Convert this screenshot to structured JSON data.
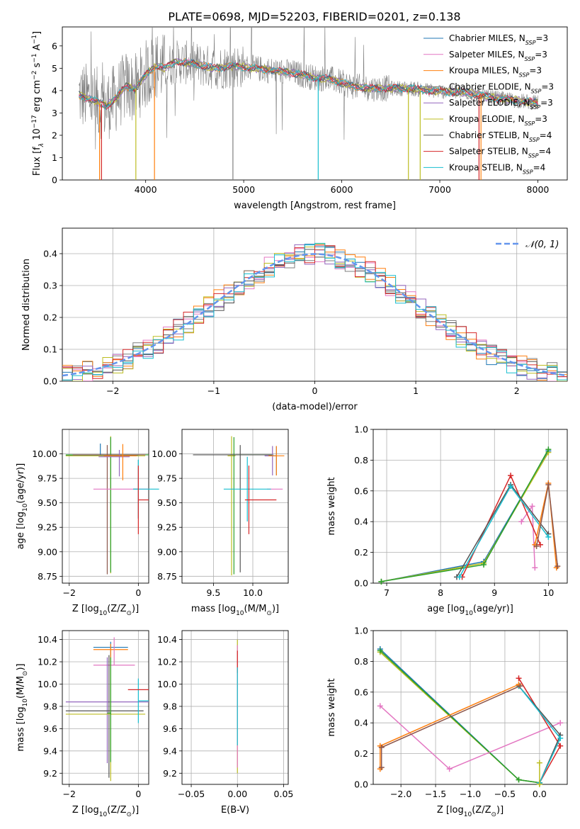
{
  "figure": {
    "title": "PLATE=0698, MJD=52203, FIBERID=0201, z=0.138"
  },
  "colors": {
    "gray": "#7f7f7f",
    "blue": "#1f77b4",
    "pink": "#e377c2",
    "orange": "#ff7f0e",
    "purple": "#9467bd",
    "olive": "#bcbd22",
    "darkgray": "#555555",
    "red": "#d62728",
    "cyan": "#17becf",
    "steelblue": "#6495ed"
  },
  "chart_data": [
    {
      "type": "line",
      "id": "spectrum",
      "xlabel": "wavelength [Angstrom, rest frame]",
      "ylabel": "Flux [f_λ 10^-17 erg cm^-2 s^-1 A^-1]",
      "xlim": [
        3150,
        8300
      ],
      "ylim": [
        0,
        6.85
      ],
      "xticks": [
        4000,
        5000,
        6000,
        7000,
        8000
      ],
      "yticks": [
        0,
        1,
        2,
        3,
        4,
        5,
        6
      ],
      "grid": false,
      "legend_position": "top-right",
      "legend": [
        {
          "label": "Chabrier MILES, N_SSP=3",
          "color": "#1f77b4"
        },
        {
          "label": "Salpeter MILES, N_SSP=3",
          "color": "#e377c2"
        },
        {
          "label": "Kroupa MILES, N_SSP=3",
          "color": "#ff7f0e"
        },
        {
          "label": "Chabrier ELODIE, N_SSP=3",
          "color": "#7f7f7f"
        },
        {
          "label": "Salpeter ELODIE, N_SSP=3",
          "color": "#9467bd"
        },
        {
          "label": "Kroupa ELODIE, N_SSP=3",
          "color": "#bcbd22"
        },
        {
          "label": "Chabrier STELIB, N_SSP=4",
          "color": "#555555"
        },
        {
          "label": "Salpeter STELIB, N_SSP=4",
          "color": "#d62728"
        },
        {
          "label": "Kroupa STELIB, N_SSP=4",
          "color": "#17becf"
        }
      ],
      "continuum": {
        "x": [
          3320,
          3450,
          3600,
          3700,
          3800,
          3900,
          4000,
          4100,
          4200,
          4300,
          4500,
          4700,
          4900,
          5100,
          5300,
          5500,
          5700,
          5900,
          6100,
          6300,
          6500,
          6700,
          6900,
          7100,
          7300,
          7500,
          7700,
          7900,
          8000
        ],
        "y": [
          3.8,
          3.6,
          3.3,
          3.7,
          4.2,
          4.1,
          4.7,
          5.1,
          5.0,
          5.3,
          5.2,
          5.0,
          5.1,
          5.0,
          4.9,
          4.8,
          4.6,
          4.5,
          4.2,
          4.1,
          4.1,
          4.1,
          4.0,
          3.95,
          3.9,
          3.7,
          3.6,
          3.5,
          3.45
        ]
      }
    },
    {
      "type": "histogram",
      "id": "residuals",
      "xlabel": "(data-model)/error",
      "ylabel": "Normed distribution",
      "xlim": [
        -2.5,
        2.5
      ],
      "ylim": [
        0,
        0.48
      ],
      "xticks": [
        -2,
        -1,
        0,
        1,
        2
      ],
      "yticks": [
        0.0,
        0.1,
        0.2,
        0.3,
        0.4
      ],
      "grid": true,
      "legend_position": "top-right",
      "reference_curve": {
        "label": "𝒩(0, 1)",
        "mean": 0,
        "sigma": 1
      },
      "bin_width": 0.1,
      "bin_start": -2.5
    },
    {
      "type": "scatter",
      "id": "age-vs-z",
      "xlabel": "Z [log10(Z/Z_sun)]",
      "ylabel": "age  [log10(age/yr)]",
      "xlim": [
        -2.2,
        0.3
      ],
      "ylim": [
        8.68,
        10.25
      ],
      "xticks": [
        -2,
        0
      ],
      "yticks": [
        8.75,
        9.0,
        9.25,
        9.5,
        9.75,
        10.0
      ],
      "grid": true,
      "errorbars": [
        {
          "x": -1.1,
          "xerr": [
            1.0,
            1.1
          ],
          "y": 9.985,
          "yerr": [
            0.0,
            0.12
          ],
          "color": "#1f77b4"
        },
        {
          "x": -0.8,
          "xerr": [
            1.3,
            1.0
          ],
          "y": 9.98,
          "yerr": [
            1.2,
            0.2
          ],
          "color": "#bcbd22"
        },
        {
          "x": -0.8,
          "xerr": [
            1.3,
            1.1
          ],
          "y": 9.99,
          "yerr": [
            1.2,
            0.18
          ],
          "color": "#2ca02c"
        },
        {
          "x": -0.9,
          "xerr": [
            1.0,
            1.1
          ],
          "y": 9.99,
          "yerr": [
            1.22,
            0.1
          ],
          "color": "#8c564b"
        },
        {
          "x": -0.55,
          "xerr": [
            0.6,
            0.3
          ],
          "y": 9.97,
          "yerr": [
            0.2,
            0.07
          ],
          "color": "#9467bd"
        },
        {
          "x": -0.45,
          "xerr": [
            0.55,
            0.4
          ],
          "y": 9.98,
          "yerr": [
            0.25,
            0.12
          ],
          "color": "#ff7f0e"
        },
        {
          "x": -0.6,
          "xerr": [
            0.7,
            0.9
          ],
          "y": 9.64,
          "yerr": [
            0.0,
            0.0
          ],
          "color": "#e377c2"
        },
        {
          "x": 0.0,
          "xerr": [
            0.15,
            0.0
          ],
          "y": 9.64,
          "yerr": [
            0.3,
            0.3
          ],
          "color": "#7f7f7f"
        },
        {
          "x": 0.0,
          "xerr": [
            0.15,
            0.6
          ],
          "y": 9.64,
          "yerr": [
            0.3,
            0.3
          ],
          "color": "#17becf"
        },
        {
          "x": 0.0,
          "xerr": [
            0.0,
            0.3
          ],
          "y": 9.53,
          "yerr": [
            0.35,
            0.35
          ],
          "color": "#d62728"
        }
      ]
    },
    {
      "type": "scatter",
      "id": "age-vs-mass",
      "xlabel": "mass [log10(M/M_sun)]",
      "ylabel": "",
      "xlim": [
        9.1,
        10.45
      ],
      "ylim": [
        8.68,
        10.25
      ],
      "xticks": [
        9.5,
        10.0
      ],
      "yticks": [
        8.75,
        9.0,
        9.25,
        9.5,
        9.75,
        10.0
      ],
      "grid": true,
      "errorbars": [
        {
          "x": 9.73,
          "xerr": [
            0.05,
            0.05
          ],
          "y": 9.98,
          "yerr": [
            1.22,
            0.2
          ],
          "color": "#bcbd22"
        },
        {
          "x": 9.76,
          "xerr": [
            0.05,
            0.5
          ],
          "y": 9.99,
          "yerr": [
            1.22,
            0.18
          ],
          "color": "#2ca02c"
        },
        {
          "x": 9.84,
          "xerr": [
            0.6,
            0.4
          ],
          "y": 9.99,
          "yerr": [
            1.2,
            0.1
          ],
          "color": "#555555"
        },
        {
          "x": 10.3,
          "xerr": [
            0.1,
            0.0
          ],
          "y": 9.98,
          "yerr": [
            0.2,
            0.1
          ],
          "color": "#1f77b4"
        },
        {
          "x": 10.25,
          "xerr": [
            0.1,
            0.0
          ],
          "y": 9.98,
          "yerr": [
            0.2,
            0.1
          ],
          "color": "#9467bd"
        },
        {
          "x": 10.3,
          "xerr": [
            0.1,
            0.1
          ],
          "y": 9.98,
          "yerr": [
            0.2,
            0.1
          ],
          "color": "#ff7f0e"
        },
        {
          "x": 10.18,
          "xerr": [
            0.0,
            0.2
          ],
          "y": 9.64,
          "yerr": [
            0.0,
            0.0
          ],
          "color": "#e377c2"
        },
        {
          "x": 9.93,
          "xerr": [
            0.3,
            0.3
          ],
          "y": 9.64,
          "yerr": [
            0.33,
            0.33
          ],
          "color": "#17becf"
        },
        {
          "x": 9.95,
          "xerr": [
            0.05,
            0.35
          ],
          "y": 9.53,
          "yerr": [
            0.35,
            0.35
          ],
          "color": "#d62728"
        }
      ]
    },
    {
      "type": "line",
      "id": "massweight-vs-age",
      "xlabel": "age  [log10(age/yr)]",
      "ylabel": "mass weight",
      "xlim": [
        6.75,
        10.35
      ],
      "ylim": [
        0.0,
        1.0
      ],
      "xticks": [
        7,
        8,
        9,
        10
      ],
      "yticks": [
        0.0,
        0.2,
        0.4,
        0.6,
        0.8,
        1.0
      ],
      "grid": true,
      "series": [
        {
          "color": "#1f77b4",
          "x": [
            6.9,
            8.8,
            10.0
          ],
          "y": [
            0.01,
            0.14,
            0.86
          ]
        },
        {
          "color": "#bcbd22",
          "x": [
            6.9,
            8.8,
            10.0
          ],
          "y": [
            0.01,
            0.13,
            0.85
          ]
        },
        {
          "color": "#2ca02c",
          "x": [
            6.9,
            8.8,
            10.0
          ],
          "y": [
            0.01,
            0.12,
            0.87
          ]
        },
        {
          "color": "#e377c2",
          "x": [
            9.5,
            9.7,
            9.75
          ],
          "y": [
            0.4,
            0.5,
            0.1
          ]
        },
        {
          "color": "#d62728",
          "x": [
            8.4,
            9.3,
            9.85
          ],
          "y": [
            0.04,
            0.7,
            0.25
          ]
        },
        {
          "color": "#555555",
          "x": [
            8.3,
            9.3,
            10.0
          ],
          "y": [
            0.04,
            0.64,
            0.32
          ]
        },
        {
          "color": "#17becf",
          "x": [
            8.35,
            9.3,
            10.0
          ],
          "y": [
            0.04,
            0.63,
            0.3
          ]
        },
        {
          "color": "#ff7f0e",
          "x": [
            9.75,
            10.0,
            10.15
          ],
          "y": [
            0.25,
            0.65,
            0.1
          ]
        },
        {
          "color": "#8c564b",
          "x": [
            9.78,
            10.0,
            10.17
          ],
          "y": [
            0.24,
            0.64,
            0.11
          ]
        }
      ]
    },
    {
      "type": "scatter",
      "id": "mass-vs-z",
      "xlabel": "Z [log10(Z/Z_sun)]",
      "ylabel": "mass [log10(M/M_sun)]",
      "xlim": [
        -2.2,
        0.3
      ],
      "ylim": [
        9.1,
        10.48
      ],
      "xticks": [
        -2,
        0
      ],
      "yticks": [
        9.2,
        9.4,
        9.6,
        9.8,
        10.0,
        10.2,
        10.4
      ],
      "grid": true,
      "errorbars": [
        {
          "x": -0.8,
          "xerr": [
            0.5,
            0.5
          ],
          "y": 10.33,
          "yerr": [
            0.1,
            0.05
          ],
          "color": "#1f77b4"
        },
        {
          "x": -0.8,
          "xerr": [
            0.5,
            0.5
          ],
          "y": 10.31,
          "yerr": [
            0.1,
            0.05
          ],
          "color": "#ff7f0e"
        },
        {
          "x": -0.7,
          "xerr": [
            0.6,
            0.6
          ],
          "y": 10.17,
          "yerr": [
            0.0,
            0.25
          ],
          "color": "#e377c2"
        },
        {
          "x": -0.9,
          "xerr": [
            1.2,
            1.2
          ],
          "y": 9.84,
          "yerr": [
            0.55,
            0.4
          ],
          "color": "#9467bd"
        },
        {
          "x": -0.85,
          "xerr": [
            1.25,
            1.0
          ],
          "y": 9.76,
          "yerr": [
            0.6,
            0.5
          ],
          "color": "#555555"
        },
        {
          "x": -0.8,
          "xerr": [
            1.3,
            1.0
          ],
          "y": 9.73,
          "yerr": [
            0.6,
            0.5
          ],
          "color": "#bcbd22"
        },
        {
          "x": -0.8,
          "xerr": [
            0.1,
            0.0
          ],
          "y": 9.74,
          "yerr": [
            0.44,
            0.5
          ],
          "color": "#2ca02c"
        },
        {
          "x": 0.0,
          "xerr": [
            0.0,
            0.3
          ],
          "y": 9.85,
          "yerr": [
            0.2,
            0.2
          ],
          "color": "#17becf"
        },
        {
          "x": 0.0,
          "xerr": [
            0.3,
            0.3
          ],
          "y": 9.95,
          "yerr": [
            0.0,
            0.0
          ],
          "color": "#d62728"
        }
      ]
    },
    {
      "type": "scatter",
      "id": "mass-vs-ebv",
      "xlabel": "E(B-V)",
      "ylabel": "",
      "xlim": [
        -0.06,
        0.055
      ],
      "ylim": [
        9.1,
        10.48
      ],
      "xticks": [
        -0.05,
        0.0,
        0.05
      ],
      "yticks": [
        9.2,
        9.4,
        9.6,
        9.8,
        10.0,
        10.2,
        10.4
      ],
      "grid": true,
      "errorbars": [
        {
          "x": 0.0,
          "xerr": [
            0.0,
            0.0
          ],
          "y": 9.8,
          "yerr": [
            0.6,
            0.6
          ],
          "color": "#bcbd22"
        },
        {
          "x": 0.0,
          "xerr": [
            0.0,
            0.0
          ],
          "y": 9.8,
          "yerr": [
            0.55,
            0.55
          ],
          "color": "#e377c2"
        },
        {
          "x": 0.0,
          "xerr": [
            0.0,
            0.0
          ],
          "y": 10.2,
          "yerr": [
            0.1,
            0.1
          ],
          "color": "#d62728"
        },
        {
          "x": 0.0,
          "xerr": [
            0.0,
            0.0
          ],
          "y": 9.8,
          "yerr": [
            0.35,
            0.35
          ],
          "color": "#17becf"
        }
      ]
    },
    {
      "type": "line",
      "id": "massweight-vs-z",
      "xlabel": "Z [log10(Z/Z_sun)]",
      "ylabel": "mass weight",
      "xlim": [
        -2.4,
        0.4
      ],
      "ylim": [
        0.0,
        1.0
      ],
      "xticks": [
        -2.0,
        -1.5,
        -1.0,
        -0.5,
        0.0
      ],
      "yticks": [
        0.0,
        0.2,
        0.4,
        0.6,
        0.8,
        1.0
      ],
      "grid": true,
      "series": [
        {
          "color": "#1f77b4",
          "x": [
            -2.3,
            -0.3,
            0.0
          ],
          "y": [
            0.88,
            0.03,
            0.01
          ]
        },
        {
          "color": "#bcbd22",
          "x": [
            -2.3,
            -0.3,
            0.0
          ],
          "y": [
            0.86,
            0.03,
            0.01
          ]
        },
        {
          "color": "#2ca02c",
          "x": [
            -2.3,
            -0.3,
            0.0
          ],
          "y": [
            0.87,
            0.03,
            0.01
          ]
        },
        {
          "color": "#e377c2",
          "x": [
            -2.3,
            -1.3,
            0.3
          ],
          "y": [
            0.51,
            0.1,
            0.4
          ]
        },
        {
          "color": "#d62728",
          "x": [
            0.0,
            0.3,
            -0.3
          ],
          "y": [
            0.01,
            0.25,
            0.69
          ]
        },
        {
          "color": "#555555",
          "x": [
            0.0,
            0.3,
            -0.3
          ],
          "y": [
            0.01,
            0.32,
            0.64
          ]
        },
        {
          "color": "#17becf",
          "x": [
            0.0,
            0.3,
            -0.3
          ],
          "y": [
            0.01,
            0.3,
            0.64
          ]
        },
        {
          "color": "#ff7f0e",
          "x": [
            -2.3,
            -2.3,
            -0.3
          ],
          "y": [
            0.1,
            0.25,
            0.65
          ]
        },
        {
          "color": "#8c564b",
          "x": [
            -2.28,
            -2.28,
            -0.28
          ],
          "y": [
            0.11,
            0.24,
            0.64
          ]
        },
        {
          "color": "#bcbd22",
          "x": [
            0.0,
            0.0
          ],
          "y": [
            0.14,
            0.0
          ]
        }
      ]
    }
  ]
}
